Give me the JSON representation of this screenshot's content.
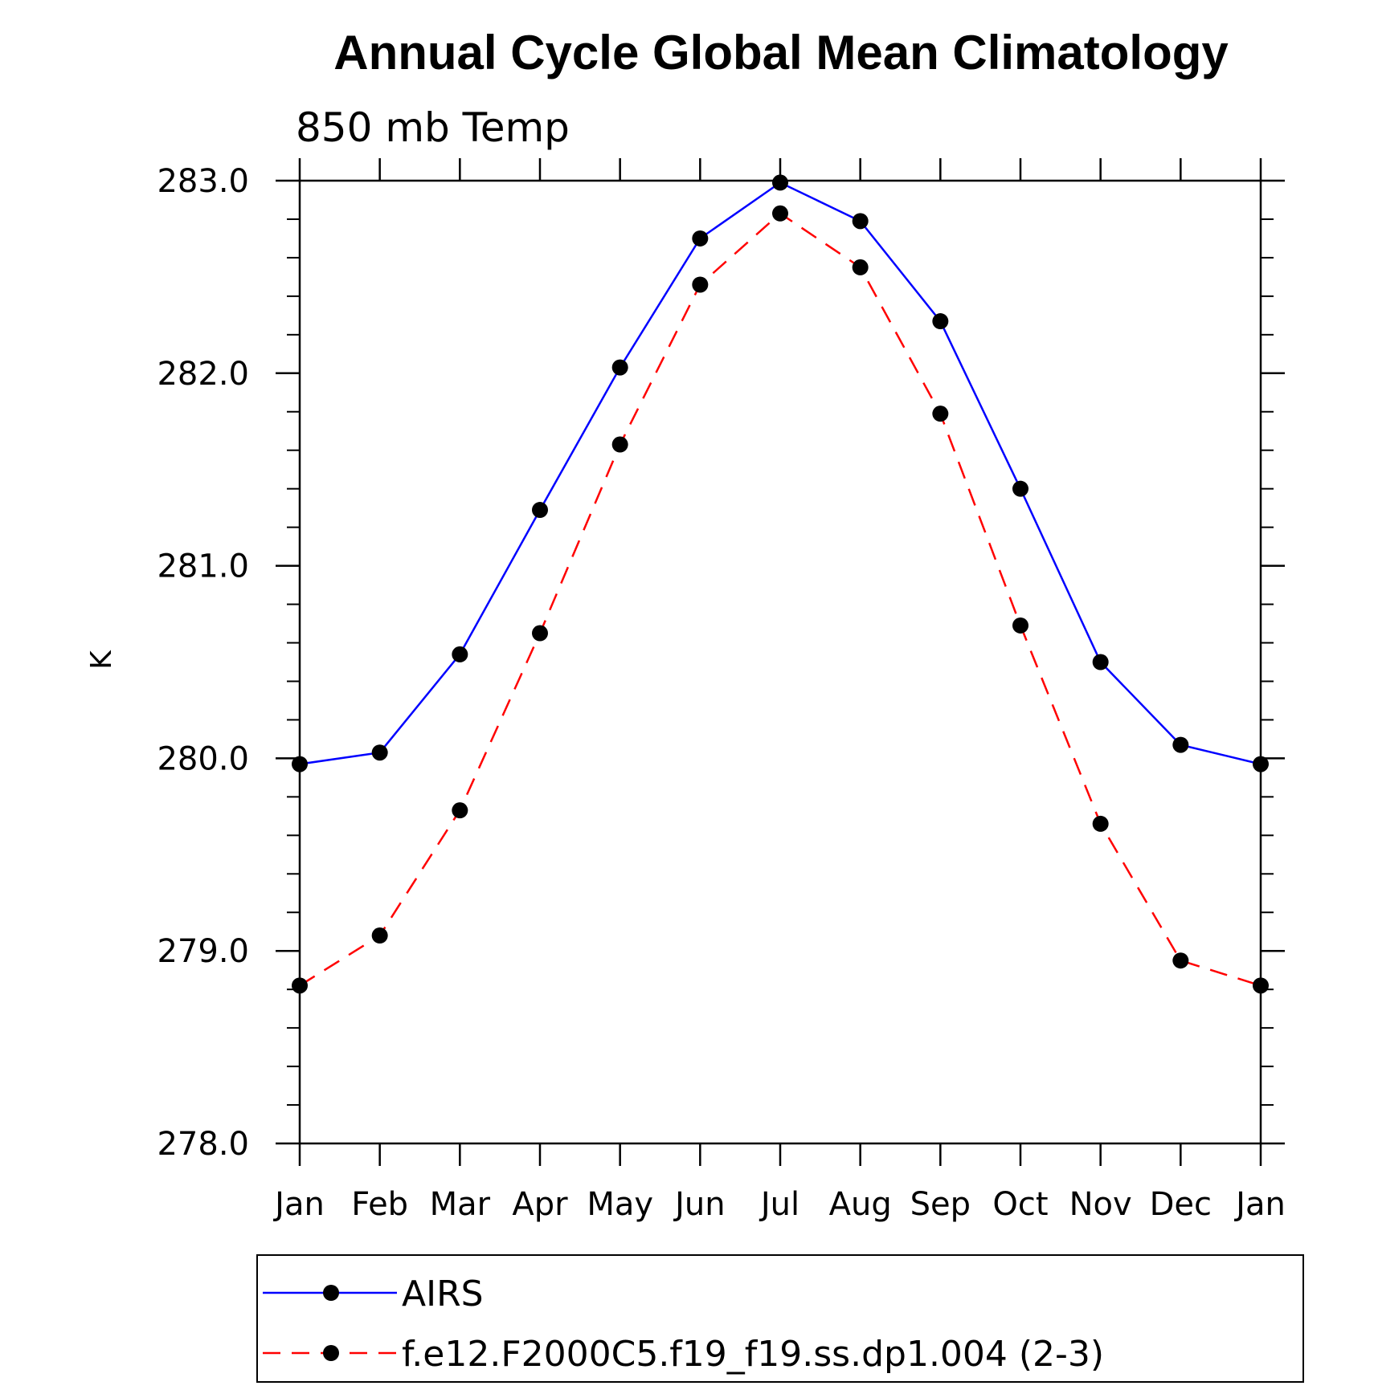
{
  "chart_data": {
    "type": "line",
    "title": "Annual Cycle Global Mean Climatology",
    "subtitle": "850 mb Temp",
    "xlabel": "",
    "ylabel": "K",
    "categories": [
      "Jan",
      "Feb",
      "Mar",
      "Apr",
      "May",
      "Jun",
      "Jul",
      "Aug",
      "Sep",
      "Oct",
      "Nov",
      "Dec",
      "Jan"
    ],
    "ylim": [
      278.0,
      283.0
    ],
    "yticks": [
      "278.0",
      "279.0",
      "280.0",
      "281.0",
      "282.0",
      "283.0"
    ],
    "yminor_step": 0.2,
    "grid": false,
    "legend_position": "bottom",
    "series": [
      {
        "name": "AIRS",
        "color": "#0000ff",
        "dash": "solid",
        "marker": "circle",
        "values": [
          279.97,
          280.03,
          280.54,
          281.29,
          282.03,
          282.7,
          282.99,
          282.79,
          282.27,
          281.4,
          280.5,
          280.07,
          279.97
        ]
      },
      {
        "name": "f.e12.F2000C5.f19_f19.ss.dp1.004 (2-3)",
        "color": "#ff0000",
        "dash": "dashed",
        "marker": "circle",
        "values": [
          278.82,
          279.08,
          279.73,
          280.65,
          281.63,
          282.46,
          282.83,
          282.55,
          281.79,
          280.69,
          279.66,
          278.95,
          278.82
        ]
      }
    ]
  }
}
